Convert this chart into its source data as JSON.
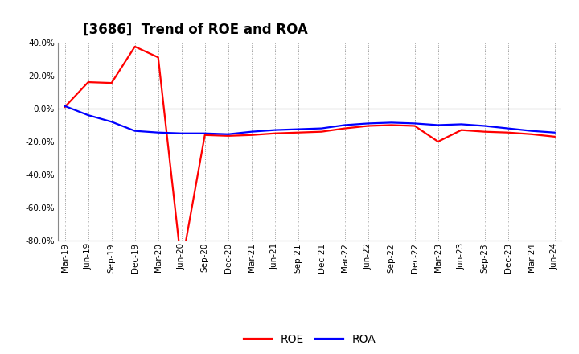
{
  "title": "[3686]  Trend of ROE and ROA",
  "x_labels": [
    "Mar-19",
    "Jun-19",
    "Sep-19",
    "Dec-19",
    "Mar-20",
    "Jun-20",
    "Sep-20",
    "Dec-20",
    "Mar-21",
    "Jun-21",
    "Sep-21",
    "Dec-21",
    "Mar-22",
    "Jun-22",
    "Sep-22",
    "Dec-22",
    "Mar-23",
    "Jun-23",
    "Sep-23",
    "Dec-23",
    "Mar-24",
    "Jun-24"
  ],
  "roe": [
    1.0,
    16.0,
    15.5,
    37.5,
    31.0,
    -95.0,
    -16.0,
    -16.5,
    -16.0,
    -15.0,
    -14.5,
    -14.0,
    -12.0,
    -10.5,
    -10.0,
    -10.5,
    -20.0,
    -13.0,
    -14.0,
    -14.5,
    -15.5,
    -17.0
  ],
  "roa": [
    1.5,
    -4.0,
    -8.0,
    -13.5,
    -14.5,
    -15.0,
    -15.0,
    -15.5,
    -14.0,
    -13.0,
    -12.5,
    -12.0,
    -10.0,
    -9.0,
    -8.5,
    -9.0,
    -10.0,
    -9.5,
    -10.5,
    -12.0,
    -13.5,
    -14.5
  ],
  "roe_color": "#ff0000",
  "roa_color": "#0000ff",
  "background_color": "#ffffff",
  "grid_color": "#999999",
  "ylim": [
    -80,
    40
  ],
  "yticks": [
    -80,
    -60,
    -40,
    -20,
    0,
    20,
    40
  ],
  "line_width": 1.6,
  "title_fontsize": 12,
  "tick_fontsize": 7.5,
  "legend_fontsize": 10
}
